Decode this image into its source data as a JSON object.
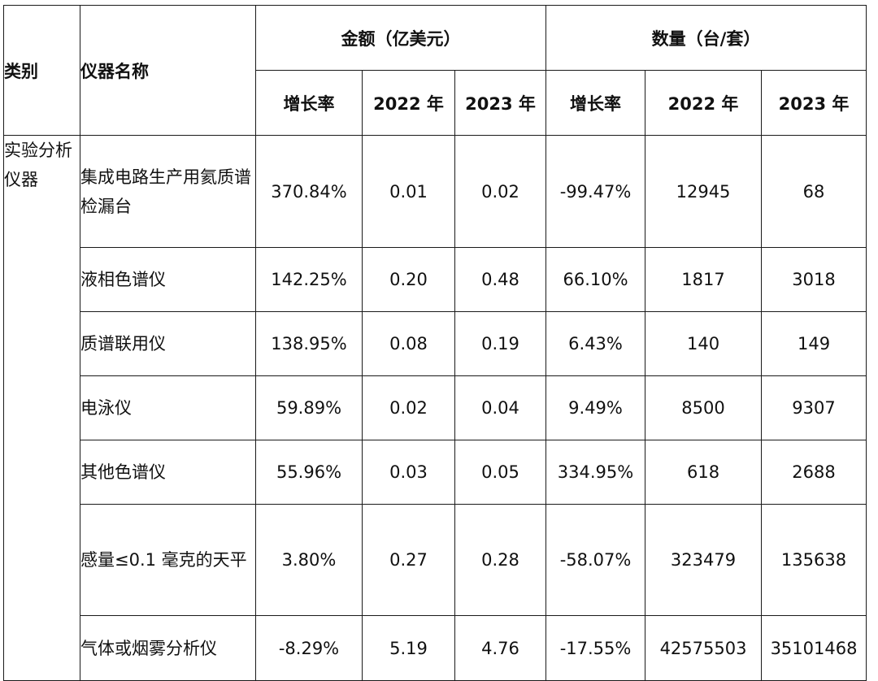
{
  "table": {
    "header_category": "类别",
    "header_name": "仪器名称",
    "group_amount": "金额（亿美元）",
    "group_quantity": "数量（台/套）",
    "sub_growth": "增长率",
    "sub_2022": "2022 年",
    "sub_2023": "2023 年",
    "category_label": "实验分析仪器",
    "rows": [
      {
        "name": "集成电路生产用氦质谱检漏台",
        "amount_growth": "370.84%",
        "amount_2022": "0.01",
        "amount_2023": "0.02",
        "qty_growth": "-99.47%",
        "qty_2022": "12945",
        "qty_2023": "68"
      },
      {
        "name": "液相色谱仪",
        "amount_growth": "142.25%",
        "amount_2022": "0.20",
        "amount_2023": "0.48",
        "qty_growth": "66.10%",
        "qty_2022": "1817",
        "qty_2023": "3018"
      },
      {
        "name": "质谱联用仪",
        "amount_growth": "138.95%",
        "amount_2022": "0.08",
        "amount_2023": "0.19",
        "qty_growth": "6.43%",
        "qty_2022": "140",
        "qty_2023": "149"
      },
      {
        "name": "电泳仪",
        "amount_growth": "59.89%",
        "amount_2022": "0.02",
        "amount_2023": "0.04",
        "qty_growth": "9.49%",
        "qty_2022": "8500",
        "qty_2023": "9307"
      },
      {
        "name": "其他色谱仪",
        "amount_growth": "55.96%",
        "amount_2022": "0.03",
        "amount_2023": "0.05",
        "qty_growth": "334.95%",
        "qty_2022": "618",
        "qty_2023": "2688"
      },
      {
        "name": "感量≤0.1 毫克的天平",
        "amount_growth": "3.80%",
        "amount_2022": "0.27",
        "amount_2023": "0.28",
        "qty_growth": "-58.07%",
        "qty_2022": "323479",
        "qty_2023": "135638"
      },
      {
        "name": "气体或烟雾分析仪",
        "amount_growth": "-8.29%",
        "amount_2022": "5.19",
        "amount_2023": "4.76",
        "qty_growth": "-17.55%",
        "qty_2022": "42575503",
        "qty_2023": "35101468"
      }
    ]
  }
}
